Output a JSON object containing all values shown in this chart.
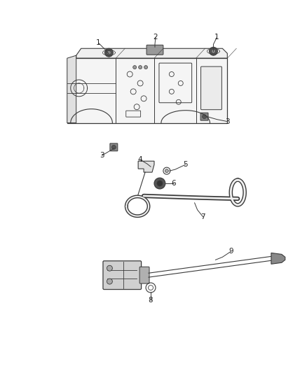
{
  "background_color": "#ffffff",
  "figure_width": 4.38,
  "figure_height": 5.33,
  "dpi": 100,
  "line_color": "#3a3a3a",
  "label_fontsize": 7.5,
  "label_color": "#222222"
}
